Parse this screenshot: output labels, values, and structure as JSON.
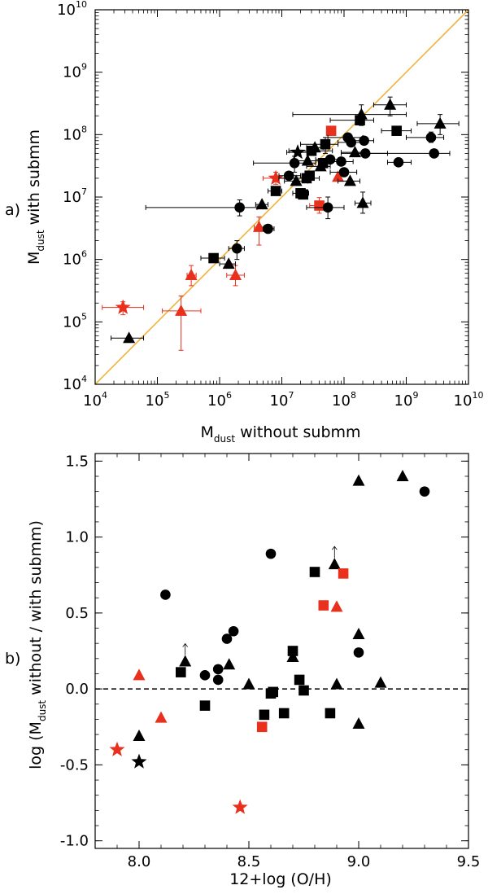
{
  "colors": {
    "black": "#000000",
    "red": "#e8301c",
    "line": "#f0b43a"
  },
  "chart_data": [
    {
      "type": "scatter",
      "panel_label": "a)",
      "xlabel": {
        "main": "M",
        "sub": "dust",
        "rest": " without submm"
      },
      "ylabel": {
        "main": "M",
        "sub": "dust",
        "rest": " with submm"
      },
      "xscale": "log",
      "yscale": "log",
      "xlim_exp": [
        4,
        10
      ],
      "ylim_exp": [
        4,
        10
      ],
      "ticks": [
        {
          "base": "10",
          "exp": "4"
        },
        {
          "base": "10",
          "exp": "5"
        },
        {
          "base": "10",
          "exp": "6"
        },
        {
          "base": "10",
          "exp": "7"
        },
        {
          "base": "10",
          "exp": "8"
        },
        {
          "base": "10",
          "exp": "9"
        },
        {
          "base": "10",
          "exp": "10"
        }
      ],
      "reference_line": "y = x",
      "points": [
        {
          "x": 28000,
          "y": 170000,
          "m": "star",
          "c": "red",
          "xlo": 13000,
          "xhi": 60000,
          "ylo": 130000,
          "yhi": 210000
        },
        {
          "x": 240000,
          "y": 150000,
          "m": "tri",
          "c": "red",
          "xlo": 120000,
          "xhi": 500000,
          "ylo": 35000,
          "yhi": 260000
        },
        {
          "x": 350000,
          "y": 560000,
          "m": "tri",
          "c": "red",
          "xlo": 300000,
          "xhi": 420000,
          "ylo": 380000,
          "yhi": 800000
        },
        {
          "x": 1800000,
          "y": 560000,
          "m": "tri",
          "c": "red",
          "xlo": 1300000,
          "xhi": 2500000,
          "ylo": 380000,
          "yhi": 800000
        },
        {
          "x": 4300000,
          "y": 3300000,
          "m": "tri",
          "c": "red",
          "xlo": 3600000,
          "xhi": 5200000,
          "ylo": 1700000,
          "yhi": 4800000
        },
        {
          "x": 8000000,
          "y": 20000000,
          "m": "star",
          "c": "red",
          "xlo": 5000000,
          "xhi": 13000000,
          "ylo": 16000000,
          "yhi": 25000000
        },
        {
          "x": 40000000,
          "y": 7300000,
          "m": "sq",
          "c": "red",
          "xlo": 28000000,
          "xhi": 50000000,
          "ylo": 5500000,
          "yhi": 9800000
        },
        {
          "x": 62000000,
          "y": 115000000,
          "m": "sq",
          "c": "red"
        },
        {
          "x": 80000000,
          "y": 21000000,
          "m": "tri",
          "c": "red"
        },
        {
          "x": 35000,
          "y": 55000,
          "m": "tri",
          "c": "black",
          "xlo": 18000,
          "xhi": 60000
        },
        {
          "x": 800000,
          "y": 1050000,
          "m": "sq",
          "c": "black",
          "xlo": 500000,
          "xhi": 1200000
        },
        {
          "x": 1400000,
          "y": 850000,
          "m": "tri",
          "c": "black",
          "xlo": 1000000,
          "xhi": 1800000
        },
        {
          "x": 1900000,
          "y": 1500000,
          "m": "circ",
          "c": "black",
          "xlo": 1400000,
          "xhi": 2500000,
          "ylo": 1000000,
          "yhi": 2000000
        },
        {
          "x": 2100000,
          "y": 6800000,
          "m": "circ",
          "c": "black",
          "xlo": 65000,
          "xhi": 4000000,
          "ylo": 5000000,
          "yhi": 9000000
        },
        {
          "x": 4800000,
          "y": 7600000,
          "m": "tri",
          "c": "black",
          "xlo": 3800000,
          "xhi": 6000000
        },
        {
          "x": 6000000,
          "y": 3100000,
          "m": "circ",
          "c": "black",
          "xlo": 5000000,
          "xhi": 7500000
        },
        {
          "x": 8000000,
          "y": 12500000,
          "m": "sq",
          "c": "black",
          "xlo": 6000000,
          "xhi": 10000000
        },
        {
          "x": 13000000,
          "y": 22000000,
          "m": "circ",
          "c": "black",
          "xlo": 9000000,
          "xhi": 20000000
        },
        {
          "x": 16000000,
          "y": 35000000,
          "m": "circ",
          "c": "black",
          "xlo": 3500000,
          "xhi": 35000000,
          "ylo": 25000000,
          "yhi": 45000000
        },
        {
          "x": 17000000,
          "y": 18000000,
          "m": "tri",
          "c": "black",
          "xlo": 11000000,
          "xhi": 26000000
        },
        {
          "x": 18000000,
          "y": 52000000,
          "m": "star",
          "c": "black",
          "xlo": 12000000,
          "xhi": 30000000
        },
        {
          "x": 20000000,
          "y": 11500000,
          "m": "sq",
          "c": "black",
          "xlo": 15000000,
          "xhi": 27000000
        },
        {
          "x": 22000000,
          "y": 11000000,
          "m": "sq",
          "c": "black"
        },
        {
          "x": 25000000,
          "y": 20000000,
          "m": "sq",
          "c": "black",
          "xlo": 9000000,
          "xhi": 40000000
        },
        {
          "x": 26000000,
          "y": 38000000,
          "m": "tri",
          "c": "black",
          "xlo": 15000000,
          "xhi": 40000000
        },
        {
          "x": 28000000,
          "y": 22000000,
          "m": "sq",
          "c": "black"
        },
        {
          "x": 30000000,
          "y": 55000000,
          "m": "sq",
          "c": "black",
          "xlo": 13000000,
          "xhi": 65000000
        },
        {
          "x": 34000000,
          "y": 62000000,
          "m": "tri",
          "c": "black",
          "xlo": 25000000,
          "xhi": 46000000
        },
        {
          "x": 42000000,
          "y": 31000000,
          "m": "tri",
          "c": "black",
          "xlo": 25000000,
          "xhi": 60000000
        },
        {
          "x": 46000000,
          "y": 35000000,
          "m": "sq",
          "c": "black"
        },
        {
          "x": 50000000,
          "y": 70000000,
          "m": "sq",
          "c": "black",
          "xlo": 20000000,
          "xhi": 80000000,
          "ylo": 50000000,
          "yhi": 90000000
        },
        {
          "x": 55000000,
          "y": 6800000,
          "m": "circ",
          "c": "black",
          "xlo": 25000000,
          "xhi": 100000000,
          "ylo": 4500000,
          "yhi": 10000000
        },
        {
          "x": 60000000,
          "y": 40000000,
          "m": "circ",
          "c": "black",
          "xlo": 35000000,
          "xhi": 90000000
        },
        {
          "x": 90000000,
          "y": 37000000,
          "m": "circ",
          "c": "black",
          "xlo": 60000000,
          "xhi": 140000000
        },
        {
          "x": 100000000,
          "y": 25000000,
          "m": "circ",
          "c": "black",
          "xlo": 60000000,
          "xhi": 160000000
        },
        {
          "x": 115000000,
          "y": 90000000,
          "m": "circ",
          "c": "black",
          "xlo": 55000000,
          "xhi": 200000000
        },
        {
          "x": 125000000,
          "y": 18000000,
          "m": "tri",
          "c": "black",
          "xlo": 80000000,
          "xhi": 180000000
        },
        {
          "x": 130000000,
          "y": 75000000,
          "m": "circ",
          "c": "black",
          "xlo": 80000000,
          "xhi": 200000000
        },
        {
          "x": 150000000,
          "y": 52000000,
          "m": "tri",
          "c": "black",
          "xlo": 90000000,
          "xhi": 250000000
        },
        {
          "x": 180000000,
          "y": 170000000,
          "m": "sq",
          "c": "black",
          "xlo": 60000000,
          "xhi": 300000000
        },
        {
          "x": 190000000,
          "y": 210000000,
          "m": "tri",
          "c": "black",
          "xlo": 15000000,
          "xhi": 1000000000,
          "ylo": 140000000,
          "yhi": 300000000
        },
        {
          "x": 200000000,
          "y": 8000000,
          "m": "tri",
          "c": "black",
          "xlo": 150000000,
          "xhi": 270000000,
          "ylo": 5500000,
          "yhi": 12000000
        },
        {
          "x": 210000000,
          "y": 80000000,
          "m": "circ",
          "c": "black",
          "xlo": 130000000,
          "xhi": 300000000
        },
        {
          "x": 220000000,
          "y": 50000000,
          "m": "circ",
          "c": "black",
          "xlo": 90000000,
          "xhi": 500000000
        },
        {
          "x": 550000000,
          "y": 300000000,
          "m": "tri",
          "c": "black",
          "xlo": 300000000,
          "xhi": 1000000000,
          "ylo": 200000000,
          "yhi": 400000000
        },
        {
          "x": 700000000,
          "y": 115000000,
          "m": "sq",
          "c": "black",
          "xlo": 400000000,
          "xhi": 1200000000
        },
        {
          "x": 750000000,
          "y": 36000000,
          "m": "circ",
          "c": "black",
          "xlo": 500000000,
          "xhi": 1200000000
        },
        {
          "x": 2500000000,
          "y": 90000000,
          "m": "circ",
          "c": "black",
          "xlo": 1000000000,
          "xhi": 4000000000,
          "ylo": 75000000,
          "yhi": 110000000
        },
        {
          "x": 2800000000,
          "y": 50000000,
          "m": "circ",
          "c": "black",
          "xlo": 200000000,
          "xhi": 5000000000
        },
        {
          "x": 3500000000,
          "y": 150000000,
          "m": "tri",
          "c": "black",
          "xlo": 1500000000,
          "xhi": 7000000000,
          "ylo": 100000000,
          "yhi": 210000000
        }
      ]
    },
    {
      "type": "scatter",
      "panel_label": "b)",
      "xlabel": {
        "main": "12+log (O/H)"
      },
      "ylabel": {
        "pre": "log (M",
        "sub": "dust",
        "rest": " without / with submm)"
      },
      "xlim": [
        7.8,
        9.5
      ],
      "ylim": [
        -1.05,
        1.55
      ],
      "xticks": [
        "8.0",
        "8.5",
        "9.0",
        "9.5"
      ],
      "yticks": [
        "-1.0",
        "-0.5",
        "0.0",
        "0.5",
        "1.0",
        "1.5"
      ],
      "reference_line": "y = 0 (dashed)",
      "points": [
        {
          "x": 7.9,
          "y": -0.4,
          "m": "star",
          "c": "red"
        },
        {
          "x": 8.0,
          "y": -0.48,
          "m": "star",
          "c": "black"
        },
        {
          "x": 8.0,
          "y": -0.31,
          "m": "tri",
          "c": "black"
        },
        {
          "x": 8.0,
          "y": 0.09,
          "m": "tri",
          "c": "red"
        },
        {
          "x": 8.1,
          "y": -0.19,
          "m": "tri",
          "c": "red"
        },
        {
          "x": 8.12,
          "y": 0.62,
          "m": "circ",
          "c": "black"
        },
        {
          "x": 8.19,
          "y": 0.11,
          "m": "sq",
          "c": "black"
        },
        {
          "x": 8.21,
          "y": 0.18,
          "m": "tri",
          "c": "black",
          "arrow": "up"
        },
        {
          "x": 8.3,
          "y": 0.09,
          "m": "circ",
          "c": "black"
        },
        {
          "x": 8.3,
          "y": -0.11,
          "m": "sq",
          "c": "black"
        },
        {
          "x": 8.36,
          "y": 0.13,
          "m": "circ",
          "c": "black"
        },
        {
          "x": 8.36,
          "y": 0.06,
          "m": "circ",
          "c": "black"
        },
        {
          "x": 8.4,
          "y": 0.33,
          "m": "circ",
          "c": "black"
        },
        {
          "x": 8.41,
          "y": 0.16,
          "m": "tri",
          "c": "black"
        },
        {
          "x": 8.43,
          "y": 0.38,
          "m": "circ",
          "c": "black"
        },
        {
          "x": 8.46,
          "y": -0.78,
          "m": "star",
          "c": "red"
        },
        {
          "x": 8.5,
          "y": 0.03,
          "m": "tri",
          "c": "black"
        },
        {
          "x": 8.56,
          "y": -0.25,
          "m": "sq",
          "c": "red"
        },
        {
          "x": 8.57,
          "y": -0.17,
          "m": "sq",
          "c": "black"
        },
        {
          "x": 8.6,
          "y": 0.89,
          "m": "circ",
          "c": "black"
        },
        {
          "x": 8.6,
          "y": -0.03,
          "m": "sq",
          "c": "black"
        },
        {
          "x": 8.61,
          "y": -0.02,
          "m": "sq",
          "c": "black"
        },
        {
          "x": 8.66,
          "y": -0.16,
          "m": "sq",
          "c": "black"
        },
        {
          "x": 8.7,
          "y": 0.25,
          "m": "sq",
          "c": "black"
        },
        {
          "x": 8.7,
          "y": 0.21,
          "m": "tri",
          "c": "black"
        },
        {
          "x": 8.73,
          "y": 0.06,
          "m": "sq",
          "c": "black"
        },
        {
          "x": 8.75,
          "y": -0.01,
          "m": "sq",
          "c": "black"
        },
        {
          "x": 8.8,
          "y": 0.77,
          "m": "sq",
          "c": "black"
        },
        {
          "x": 8.84,
          "y": 0.55,
          "m": "sq",
          "c": "red"
        },
        {
          "x": 8.87,
          "y": -0.16,
          "m": "sq",
          "c": "black"
        },
        {
          "x": 8.89,
          "y": 0.82,
          "m": "tri",
          "c": "black",
          "arrow": "up"
        },
        {
          "x": 8.9,
          "y": 0.54,
          "m": "tri",
          "c": "red"
        },
        {
          "x": 8.9,
          "y": 0.03,
          "m": "tri",
          "c": "black"
        },
        {
          "x": 8.93,
          "y": 0.76,
          "m": "sq",
          "c": "red"
        },
        {
          "x": 9.0,
          "y": 1.37,
          "m": "tri",
          "c": "black"
        },
        {
          "x": 9.0,
          "y": 0.36,
          "m": "tri",
          "c": "black"
        },
        {
          "x": 9.0,
          "y": 0.24,
          "m": "circ",
          "c": "black"
        },
        {
          "x": 9.0,
          "y": -0.23,
          "m": "tri",
          "c": "black"
        },
        {
          "x": 9.1,
          "y": 0.04,
          "m": "tri",
          "c": "black"
        },
        {
          "x": 9.2,
          "y": 1.4,
          "m": "tri",
          "c": "black"
        },
        {
          "x": 9.3,
          "y": 1.3,
          "m": "circ",
          "c": "black"
        }
      ]
    }
  ]
}
